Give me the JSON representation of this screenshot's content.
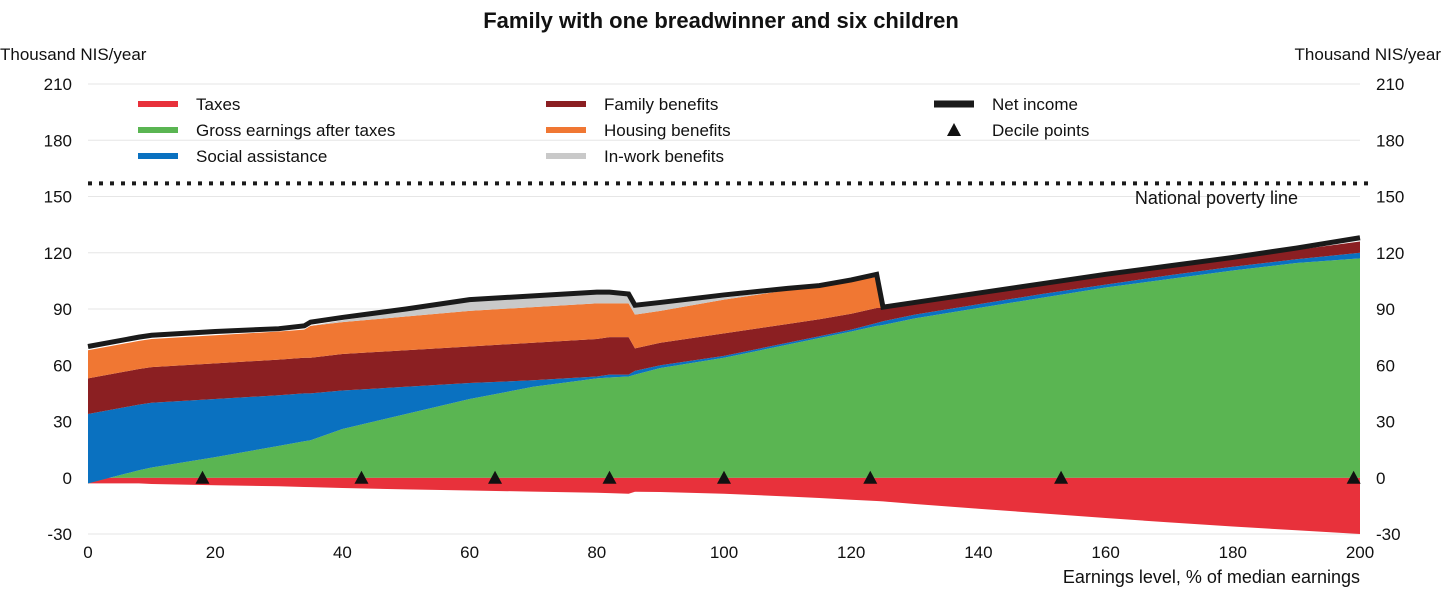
{
  "chart_data": {
    "type": "area",
    "title": "Family with one breadwinner and six children",
    "ylabel_left": "Thousand NIS/year",
    "ylabel_right": "Thousand NIS/year",
    "xlabel": "Earnings level, % of median earnings",
    "xlim": [
      0,
      200
    ],
    "ylim": [
      -30,
      210
    ],
    "xticks": [
      "0",
      "20",
      "40",
      "60",
      "80",
      "100",
      "120",
      "140",
      "160",
      "180",
      "200"
    ],
    "yticks": [
      "-30",
      "0",
      "30",
      "60",
      "90",
      "120",
      "150",
      "180",
      "210"
    ],
    "grid": "horizontal",
    "legend_position": "top",
    "colors": {
      "taxes": "#e8313b",
      "gross": "#5ab552",
      "social": "#0a71c0",
      "family": "#8b1f22",
      "housing": "#f07733",
      "inwork": "#c9c9c9",
      "net": "#1a1a1a",
      "poverty": "#1a1a1a"
    },
    "x": [
      0,
      8,
      10,
      20,
      30,
      34,
      35,
      40,
      50,
      60,
      70,
      80,
      82,
      85,
      86,
      90,
      100,
      110,
      115,
      120,
      124,
      125,
      130,
      140,
      150,
      160,
      170,
      180,
      190,
      200
    ],
    "series": [
      {
        "name": "Taxes",
        "key": "taxes",
        "values": [
          -3,
          -3,
          -3.3,
          -4,
          -4.5,
          -4.9,
          -5,
          -5.5,
          -6.2,
          -6.8,
          -7.4,
          -8,
          -8.2,
          -8.5,
          -7.5,
          -7.6,
          -8.5,
          -10,
          -10.8,
          -11.7,
          -12.4,
          -12.6,
          -14,
          -16.5,
          -19,
          -21.5,
          -23.8,
          -26,
          -28,
          -30
        ]
      },
      {
        "name": "Gross earnings after taxes",
        "key": "gross",
        "values": [
          -3,
          4,
          5.5,
          11,
          17,
          19.5,
          20,
          26,
          34,
          42,
          48.5,
          53,
          53.5,
          54,
          55,
          58.5,
          64,
          71,
          74.5,
          78,
          81,
          81.5,
          85,
          90.5,
          96,
          101.5,
          106,
          110.5,
          114.5,
          117
        ]
      },
      {
        "name": "Social assistance",
        "key": "social",
        "values": [
          34,
          39,
          40,
          42,
          44,
          45,
          45,
          46.5,
          48.5,
          50.5,
          52,
          54,
          55,
          55,
          57,
          60,
          65,
          72,
          75.5,
          79,
          82.5,
          83.5,
          87,
          92.5,
          98,
          103,
          108,
          112.5,
          116.5,
          120
        ]
      },
      {
        "name": "Family benefits",
        "key": "family",
        "values": [
          53,
          58,
          59,
          61,
          63,
          64,
          64,
          66,
          68,
          70,
          72,
          74,
          75,
          75,
          69,
          72,
          77,
          82,
          84.5,
          87.5,
          90.5,
          90.5,
          93,
          98,
          103,
          108,
          112.5,
          117,
          121.5,
          126
        ]
      },
      {
        "name": "Housing benefits",
        "key": "housing",
        "values": [
          68,
          73,
          74,
          76,
          78,
          79,
          81,
          83,
          86,
          89,
          91,
          93,
          93,
          93,
          87,
          89,
          95,
          100,
          102,
          105,
          107,
          90.5,
          93,
          98,
          103,
          108,
          112.5,
          117,
          121.5,
          126
        ]
      },
      {
        "name": "In-work benefits",
        "key": "inwork",
        "values": [
          68,
          73,
          74,
          76,
          78,
          79,
          81,
          84,
          89,
          94,
          96,
          98,
          98,
          97,
          92,
          93,
          96,
          100,
          102,
          105,
          107,
          90.5,
          93,
          98,
          103,
          108,
          112.5,
          117,
          121.5,
          126
        ]
      },
      {
        "name": "Net income",
        "key": "net",
        "values": [
          70,
          75,
          76,
          78,
          79.5,
          81,
          83,
          85.5,
          90,
          95,
          97,
          99,
          99,
          98,
          92,
          93.5,
          97.5,
          101,
          102.5,
          105.5,
          108.5,
          91,
          93.5,
          98.5,
          103.5,
          108.5,
          113,
          117.5,
          122.5,
          128
        ]
      }
    ],
    "decile_points": [
      18,
      43,
      64,
      82,
      100,
      123,
      153,
      199
    ],
    "poverty_line": 157,
    "annotation": "National poverty line",
    "legend": [
      {
        "label": "Taxes",
        "key": "taxes",
        "marker": "line"
      },
      {
        "label": "Gross earnings after taxes",
        "key": "gross",
        "marker": "line"
      },
      {
        "label": "Social assistance",
        "key": "social",
        "marker": "line"
      },
      {
        "label": "Family benefits",
        "key": "family",
        "marker": "line"
      },
      {
        "label": "Housing benefits",
        "key": "housing",
        "marker": "line"
      },
      {
        "label": "In-work benefits",
        "key": "inwork",
        "marker": "line"
      },
      {
        "label": "Net income",
        "key": "net",
        "marker": "thickline"
      },
      {
        "label": "Decile points",
        "key": "net",
        "marker": "triangle"
      }
    ]
  }
}
